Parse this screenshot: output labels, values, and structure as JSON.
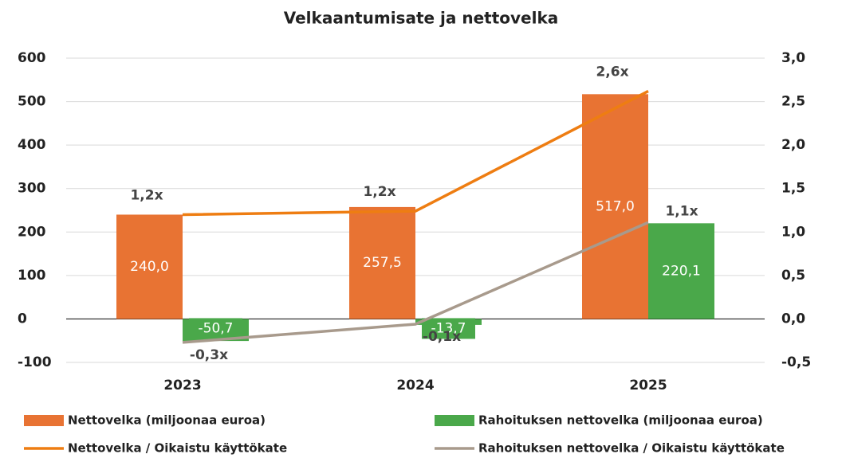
{
  "chart_data": {
    "type": "bar-line",
    "title": "Velkaantumisate ja nettovelka",
    "categories": [
      "2023",
      "2024",
      "2025"
    ],
    "series": [
      {
        "name": "Nettovelka (miljoonaa euroa)",
        "type": "bar",
        "color": "#e87333",
        "values": [
          240.0,
          257.5,
          517.0
        ],
        "value_labels": [
          "240,0",
          "257,5",
          "517,0"
        ]
      },
      {
        "name": "Rahoituksen nettovelka (miljoonaa euroa)",
        "type": "bar",
        "color": "#4aa84a",
        "values": [
          -50.7,
          -13.7,
          220.1
        ],
        "value_labels": [
          "-50,7",
          "-13,7",
          "220,1"
        ]
      },
      {
        "name": "Nettovelka / Oikaistu käyttökate",
        "type": "line",
        "axis": "y2",
        "color": "#ee7d12",
        "values": [
          1.2,
          1.24,
          2.62
        ],
        "value_labels": [
          "1,2x",
          "1,2x",
          "2,6x"
        ]
      },
      {
        "name": "Rahoituksen nettovelka / Oikaistu käyttökate",
        "type": "line",
        "axis": "y2",
        "color": "#a89a8c",
        "values": [
          -0.27,
          -0.06,
          1.11
        ],
        "value_labels": [
          "-0,3x",
          "-0,1x",
          "1,1x"
        ]
      }
    ],
    "ylim": [
      -100,
      600
    ],
    "yticks": [
      -100,
      0,
      100,
      200,
      300,
      400,
      500,
      600
    ],
    "y2lim": [
      -0.5,
      3.0
    ],
    "y2ticks": [
      {
        "value": -0.5,
        "label": "-0,5"
      },
      {
        "value": 0,
        "label": "0,0"
      },
      {
        "value": 0.5,
        "label": "0,5"
      },
      {
        "value": 1.0,
        "label": "1,0"
      },
      {
        "value": 1.5,
        "label": "1,5"
      },
      {
        "value": 2.0,
        "label": "2,0"
      },
      {
        "value": 2.5,
        "label": "2,5"
      },
      {
        "value": 3.0,
        "label": "3,0"
      }
    ],
    "grid": true
  }
}
